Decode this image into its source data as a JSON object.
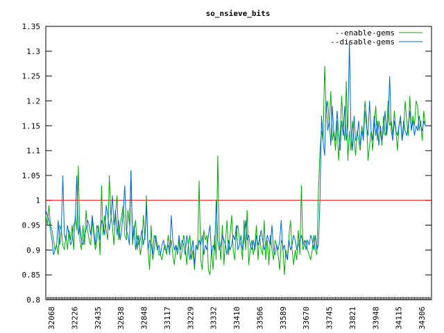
{
  "chart_data": {
    "type": "line",
    "title": "so_nsieve_bits",
    "xlabel": "",
    "ylabel": "",
    "ylim": [
      0.8,
      1.35
    ],
    "yticks": [
      0.8,
      0.85,
      0.9,
      0.95,
      1,
      1.05,
      1.1,
      1.15,
      1.2,
      1.25,
      1.3,
      1.35
    ],
    "ytick_labels": [
      "0.8",
      "0.85",
      "0.9",
      "0.95",
      "1",
      "1.05",
      "1.1",
      "1.15",
      "1.2",
      "1.25",
      "1.3",
      "1.35"
    ],
    "xtick_labels": [
      "32068",
      "32226",
      "32435",
      "32638",
      "32848",
      "33117",
      "33229",
      "33332",
      "33410",
      "33506",
      "33589",
      "33670",
      "33745",
      "33821",
      "33948",
      "34115",
      "34306"
    ],
    "point_count": 250,
    "reference_line": {
      "y": 1,
      "color": "#ff0000"
    },
    "legend": {
      "position": "top-right"
    },
    "grid": false,
    "series": [
      {
        "name": "--enable-gems",
        "color": "#00aa00",
        "values": [
          0.97,
          0.95,
          0.99,
          0.95,
          0.94,
          0.92,
          0.9,
          0.91,
          0.89,
          0.95,
          0.94,
          0.91,
          0.9,
          0.93,
          0.9,
          0.94,
          0.92,
          0.95,
          0.9,
          0.97,
          0.94,
          1.07,
          0.92,
          0.9,
          0.95,
          0.91,
          0.98,
          0.94,
          0.92,
          0.91,
          0.96,
          0.93,
          0.9,
          0.92,
          0.95,
          0.89,
          1.03,
          0.93,
          0.97,
          0.94,
          0.92,
          1.05,
          0.97,
          0.95,
          0.91,
          0.97,
          1.01,
          0.92,
          0.95,
          0.97,
          0.99,
          0.93,
          0.92,
          0.98,
          0.95,
          1.06,
          0.91,
          0.94,
          0.96,
          0.9,
          0.93,
          0.89,
          0.91,
          0.97,
          0.92,
          1.01,
          0.9,
          0.86,
          0.95,
          0.88,
          0.9,
          0.93,
          0.91,
          0.89,
          0.89,
          0.88,
          0.9,
          0.91,
          0.89,
          0.93,
          0.9,
          0.92,
          0.89,
          0.87,
          0.91,
          0.9,
          0.92,
          0.88,
          0.9,
          0.93,
          0.91,
          0.87,
          0.91,
          0.93,
          0.88,
          0.9,
          0.86,
          0.91,
          0.9,
          1.04,
          0.88,
          0.86,
          0.94,
          0.92,
          0.93,
          0.86,
          0.85,
          0.9,
          0.86,
          0.93,
          0.88,
          1.09,
          0.92,
          0.88,
          0.95,
          0.87,
          0.92,
          0.96,
          0.89,
          0.93,
          0.97,
          0.9,
          0.88,
          0.94,
          0.95,
          0.92,
          0.91,
          0.88,
          0.96,
          0.9,
          0.98,
          0.87,
          0.9,
          0.92,
          0.89,
          0.91,
          0.95,
          0.88,
          0.93,
          0.9,
          0.89,
          0.96,
          0.88,
          0.92,
          0.87,
          0.93,
          0.9,
          0.88,
          0.92,
          0.91,
          0.89,
          0.86,
          0.92,
          0.91,
          0.85,
          0.9,
          0.88,
          0.93,
          0.96,
          0.9,
          0.87,
          0.9,
          0.88,
          0.94,
          0.89,
          1.03,
          0.9,
          0.91,
          0.92,
          0.9,
          0.89,
          0.88,
          0.9,
          0.93,
          0.9,
          0.89,
          1.02,
          1.1,
          1.14,
          1.12,
          1.27,
          1.18,
          1.2,
          1.15,
          1.22,
          1.12,
          1.14,
          1.1,
          1.16,
          1.08,
          1.13,
          1.21,
          1.15,
          1.12,
          1.24,
          1.08,
          1.14,
          1.1,
          1.16,
          1.12,
          1.09,
          1.14,
          1.12,
          1.1,
          1.15,
          1.13,
          1.2,
          1.17,
          1.08,
          1.11,
          1.14,
          1.1,
          1.15,
          1.19,
          1.12,
          1.16,
          1.14,
          1.11,
          1.17,
          1.13,
          1.14,
          1.2,
          1.15,
          1.16,
          1.13,
          1.18,
          1.14,
          1.1,
          1.15,
          1.16,
          1.12,
          1.14,
          1.2,
          1.16,
          1.13,
          1.21,
          1.14,
          1.17,
          1.15,
          1.2,
          1.19,
          1.14,
          1.16,
          1.12,
          1.18,
          1.15
        ],
        "label_color": "#000000"
      },
      {
        "name": "--disable-gems",
        "color": "#0066cc",
        "values": [
          0.98,
          0.97,
          0.96,
          0.94,
          0.92,
          0.89,
          0.9,
          0.91,
          0.96,
          0.91,
          0.94,
          1.05,
          0.93,
          0.92,
          0.95,
          0.93,
          0.91,
          0.92,
          0.95,
          0.96,
          1.05,
          0.93,
          0.95,
          0.92,
          0.91,
          0.93,
          0.94,
          0.96,
          0.95,
          0.93,
          0.97,
          0.94,
          0.91,
          0.95,
          0.94,
          0.92,
          0.96,
          0.95,
          0.93,
          0.99,
          0.97,
          0.94,
          0.96,
          1.01,
          0.95,
          0.98,
          0.93,
          0.96,
          0.92,
          0.94,
          0.98,
          1.03,
          0.94,
          0.93,
          0.91,
          1.06,
          0.92,
          0.95,
          0.9,
          0.93,
          0.91,
          0.92,
          0.94,
          0.91,
          0.93,
          0.99,
          0.9,
          0.92,
          0.91,
          0.89,
          0.93,
          0.92,
          0.9,
          0.91,
          0.89,
          0.91,
          0.92,
          0.9,
          0.9,
          0.91,
          0.89,
          0.97,
          0.92,
          0.9,
          0.91,
          0.89,
          0.93,
          0.9,
          0.92,
          0.91,
          0.89,
          0.93,
          0.91,
          0.88,
          0.9,
          0.92,
          0.87,
          0.91,
          0.9,
          0.92,
          0.91,
          0.93,
          0.89,
          0.91,
          0.9,
          0.93,
          0.95,
          0.89,
          0.91,
          0.9,
          1.0,
          0.92,
          0.9,
          0.91,
          0.93,
          0.92,
          0.91,
          0.89,
          0.92,
          0.9,
          0.91,
          0.93,
          0.92,
          0.95,
          0.9,
          0.91,
          0.93,
          0.9,
          0.92,
          0.96,
          0.92,
          0.93,
          0.91,
          0.9,
          0.92,
          0.9,
          0.93,
          0.91,
          0.92,
          0.94,
          0.92,
          0.9,
          0.91,
          0.93,
          0.92,
          0.91,
          0.95,
          0.9,
          0.89,
          0.91,
          0.9,
          0.92,
          0.96,
          0.9,
          0.91,
          0.89,
          0.88,
          0.92,
          0.9,
          0.91,
          0.93,
          0.92,
          0.9,
          0.91,
          0.92,
          0.93,
          0.91,
          0.92,
          0.9,
          0.92,
          0.91,
          0.93,
          0.92,
          0.9,
          0.93,
          0.9,
          0.91,
          1.0,
          1.17,
          1.12,
          1.09,
          1.2,
          1.14,
          1.16,
          1.11,
          1.19,
          1.13,
          1.12,
          1.18,
          1.14,
          1.1,
          1.16,
          1.13,
          1.19,
          1.12,
          1.15,
          1.32,
          1.14,
          1.1,
          1.17,
          1.12,
          1.13,
          1.16,
          1.11,
          1.14,
          1.12,
          1.18,
          1.15,
          1.13,
          1.2,
          1.14,
          1.12,
          1.17,
          1.13,
          1.16,
          1.11,
          1.15,
          1.12,
          1.14,
          1.18,
          1.13,
          1.16,
          1.25,
          1.14,
          1.12,
          1.16,
          1.14,
          1.13,
          1.15,
          1.17,
          1.12,
          1.16,
          1.14,
          1.13,
          1.15,
          1.18,
          1.14,
          1.16,
          1.13,
          1.15,
          1.14,
          1.17,
          1.15,
          1.14,
          1.16,
          1.15
        ],
        "label_color": "#000000"
      }
    ]
  }
}
